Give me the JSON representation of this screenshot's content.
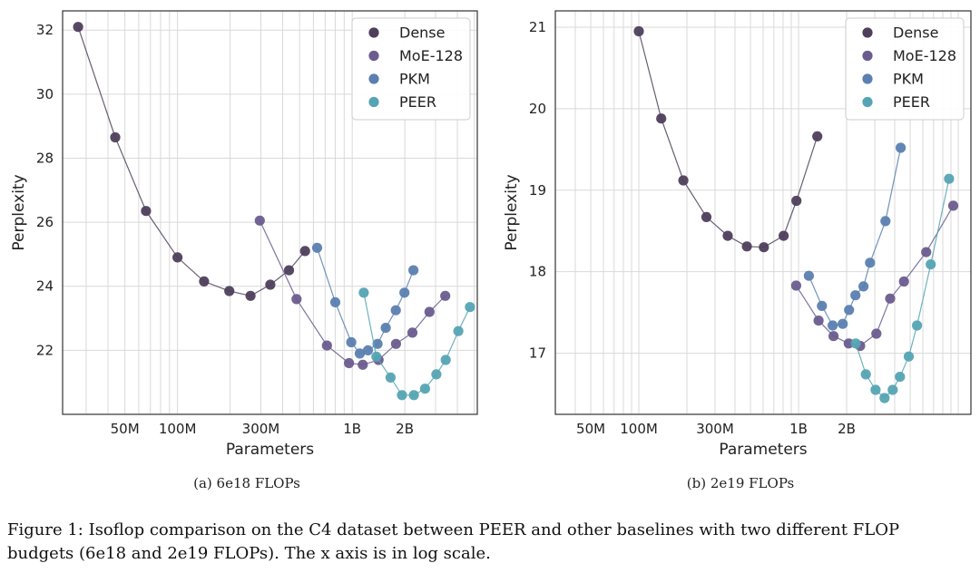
{
  "figure": {
    "caption_line1": "Figure 1: Isoflop comparison on the C4 dataset between PEER and other baselines with two different FLOP",
    "caption_line2": "budgets (6e18 and 2e19 FLOPs). The x axis is in log scale."
  },
  "colors": {
    "Dense": "#4e3f5c",
    "MoE-128": "#6a5c8e",
    "PKM": "#5b80b0",
    "PEER": "#55a4b3",
    "grid": "#d9d9d9",
    "frame": "#333333"
  },
  "chart_data": [
    {
      "type": "scatter",
      "subcaption": "(a) 6e18 FLOPs",
      "xlabel": "Parameters",
      "ylabel": "Perplexity",
      "xscale": "log",
      "xlim": [
        22000000,
        5200000000
      ],
      "ylim": [
        20.0,
        32.6
      ],
      "xticks": [
        {
          "value": 50000000,
          "label": "50M"
        },
        {
          "value": 100000000,
          "label": "100M"
        },
        {
          "value": 300000000,
          "label": "300M"
        },
        {
          "value": 1000000000,
          "label": "1B"
        },
        {
          "value": 2000000000,
          "label": "2B"
        }
      ],
      "yticks": [
        22,
        24,
        26,
        28,
        30,
        32
      ],
      "grid": true,
      "legend_position": "top-right",
      "series": [
        {
          "name": "Dense",
          "connected": true,
          "points": [
            [
              27000000,
              32.1
            ],
            [
              44000000,
              28.65
            ],
            [
              66000000,
              26.35
            ],
            [
              100000000,
              24.9
            ],
            [
              142000000,
              24.15
            ],
            [
              198000000,
              23.85
            ],
            [
              262000000,
              23.7
            ],
            [
              340000000,
              24.05
            ],
            [
              435000000,
              24.5
            ],
            [
              537000000,
              25.1
            ]
          ]
        },
        {
          "name": "MoE-128",
          "connected": true,
          "points": [
            [
              296000000,
              26.05
            ],
            [
              480000000,
              23.6
            ],
            [
              717000000,
              22.15
            ],
            [
              959000000,
              21.6
            ],
            [
              1150000000,
              21.55
            ],
            [
              1415000000,
              21.7
            ],
            [
              1780000000,
              22.2
            ],
            [
              2210000000,
              22.55
            ],
            [
              2770000000,
              23.2
            ],
            [
              3410000000,
              23.7
            ]
          ]
        },
        {
          "name": "PKM",
          "connected": true,
          "points": [
            [
              630000000,
              25.2
            ],
            [
              800000000,
              23.5
            ],
            [
              988000000,
              22.25
            ],
            [
              1105000000,
              21.9
            ],
            [
              1231000000,
              22.0
            ],
            [
              1397000000,
              22.2
            ],
            [
              1556000000,
              22.7
            ],
            [
              1777000000,
              23.25
            ],
            [
              1990000000,
              23.8
            ],
            [
              2240000000,
              24.5
            ]
          ]
        },
        {
          "name": "PEER",
          "connected": true,
          "points": [
            [
              1165000000,
              23.8
            ],
            [
              1375000000,
              21.8
            ],
            [
              1658000000,
              21.15
            ],
            [
              1926000000,
              20.6
            ],
            [
              2254000000,
              20.6
            ],
            [
              2612000000,
              20.8
            ],
            [
              3034000000,
              21.25
            ],
            [
              3430000000,
              21.7
            ],
            [
              4050000000,
              22.6
            ],
            [
              4720000000,
              23.35
            ]
          ]
        }
      ]
    },
    {
      "type": "scatter",
      "subcaption": "(b) 2e19 FLOPs",
      "xlabel": "Parameters",
      "ylabel": "Perplexity",
      "xscale": "log",
      "xlim": [
        30000000,
        12000000000
      ],
      "ylim": [
        16.25,
        21.2
      ],
      "xticks": [
        {
          "value": 50000000,
          "label": "50M"
        },
        {
          "value": 100000000,
          "label": "100M"
        },
        {
          "value": 300000000,
          "label": "300M"
        },
        {
          "value": 1000000000,
          "label": "1B"
        },
        {
          "value": 2000000000,
          "label": "2B"
        }
      ],
      "yticks": [
        17,
        18,
        19,
        20,
        21
      ],
      "grid": true,
      "legend_position": "top-right",
      "series": [
        {
          "name": "Dense",
          "connected": true,
          "points": [
            [
              100000000,
              20.95
            ],
            [
              138000000,
              19.88
            ],
            [
              190000000,
              19.12
            ],
            [
              265000000,
              18.67
            ],
            [
              360000000,
              18.44
            ],
            [
              475000000,
              18.31
            ],
            [
              606000000,
              18.3
            ],
            [
              806000000,
              18.44
            ],
            [
              970000000,
              18.87
            ],
            [
              1310000000,
              19.66
            ]
          ]
        },
        {
          "name": "MoE-128",
          "connected": true,
          "points": [
            [
              966000000,
              17.83
            ],
            [
              1335000000,
              17.4
            ],
            [
              1656000000,
              17.21
            ],
            [
              2061000000,
              17.12
            ],
            [
              2430000000,
              17.09
            ],
            [
              3070000000,
              17.24
            ],
            [
              3748000000,
              17.67
            ],
            [
              4572000000,
              17.88
            ],
            [
              6300000000,
              18.24
            ],
            [
              9300000000,
              18.81
            ]
          ]
        },
        {
          "name": "PKM",
          "connected": true,
          "points": [
            [
              1160000000,
              17.95
            ],
            [
              1400000000,
              17.58
            ],
            [
              1634000000,
              17.34
            ],
            [
              1890000000,
              17.36
            ],
            [
              2070000000,
              17.53
            ],
            [
              2270000000,
              17.71
            ],
            [
              2550000000,
              17.82
            ],
            [
              2800000000,
              18.11
            ],
            [
              3500000000,
              18.62
            ],
            [
              4360000000,
              19.52
            ]
          ]
        },
        {
          "name": "PEER",
          "connected": true,
          "points": [
            [
              2280000000,
              17.12
            ],
            [
              2637000000,
              16.74
            ],
            [
              3034000000,
              16.55
            ],
            [
              3452000000,
              16.45
            ],
            [
              3883000000,
              16.55
            ],
            [
              4316000000,
              16.71
            ],
            [
              4900000000,
              16.96
            ],
            [
              5520000000,
              17.34
            ],
            [
              6720000000,
              18.09
            ],
            [
              8760000000,
              19.14
            ]
          ]
        }
      ]
    }
  ]
}
